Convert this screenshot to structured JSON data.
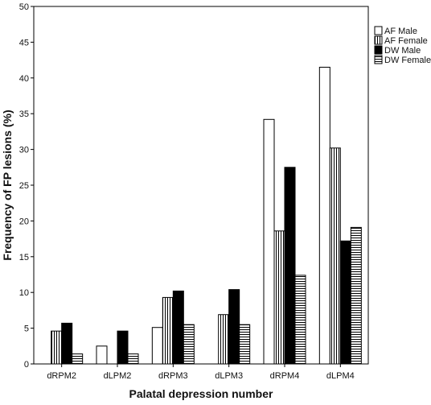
{
  "chart_data": {
    "type": "bar",
    "xlabel": "Palatal depression number",
    "ylabel": "Frequency of FP lesions (%)",
    "ylim": [
      0,
      50
    ],
    "yticks": [
      0,
      5,
      10,
      15,
      20,
      25,
      30,
      35,
      40,
      45,
      50
    ],
    "grid": false,
    "legend_position": "top-right",
    "categories": [
      "dRPM2",
      "dLPM2",
      "dRPM3",
      "dLPM3",
      "dRPM4",
      "dLPM4"
    ],
    "series": [
      {
        "name": "AF Male",
        "pattern": "white",
        "values": [
          0,
          2.5,
          5.1,
          0,
          34.2,
          41.5
        ]
      },
      {
        "name": "AF Female",
        "pattern": "vertical-stripes",
        "values": [
          4.6,
          0,
          9.3,
          6.9,
          18.6,
          30.2
        ]
      },
      {
        "name": "DW Male",
        "pattern": "black",
        "values": [
          5.7,
          4.6,
          10.2,
          10.4,
          27.5,
          17.2
        ]
      },
      {
        "name": "DW Female",
        "pattern": "horizontal-stripes",
        "values": [
          1.4,
          1.4,
          5.5,
          5.5,
          12.4,
          19.1
        ]
      }
    ]
  }
}
